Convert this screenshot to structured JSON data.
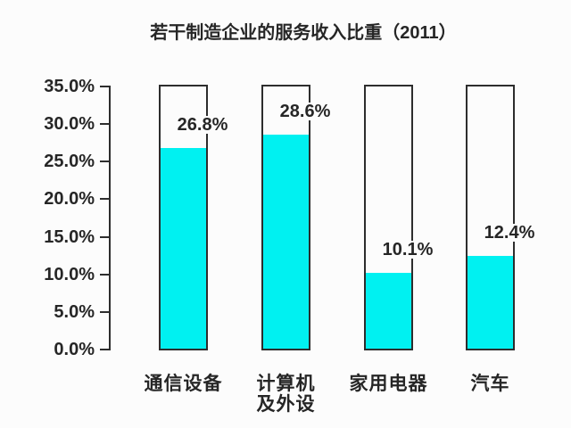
{
  "page": {
    "background_color": "#fcfcfc",
    "text_color": "#262626"
  },
  "chart_data": {
    "type": "bar",
    "title": "若干制造企业的服务收入比重（2011）",
    "categories": [
      "通信设备",
      "计算机及外设",
      "家用电器",
      "汽车"
    ],
    "values": [
      26.8,
      28.6,
      10.1,
      12.4
    ],
    "xlabel": "",
    "ylabel": "",
    "ylim": [
      0,
      35
    ],
    "ytick_labels": [
      "0.0%",
      "5.0%",
      "10.0%",
      "15.0%",
      "20.0%",
      "25.0%",
      "30.0%",
      "35.0%"
    ],
    "grid": false,
    "legend": false,
    "bar_style": {
      "fill_color": "#00f1f1",
      "outline_color": "#2d2d2d",
      "outline_box_top_value": 35,
      "empty_fill_color": "#fcfcfc"
    },
    "axis_color": "#2d2d2d",
    "bars": [
      {
        "category_lines": [
          "通信设备"
        ],
        "value": 26.8,
        "value_label": "26.8%"
      },
      {
        "category_lines": [
          "计算机",
          "及外设"
        ],
        "value": 28.6,
        "value_label": "28.6%"
      },
      {
        "category_lines": [
          "家用电器"
        ],
        "value": 10.1,
        "value_label": "10.1%"
      },
      {
        "category_lines": [
          "汽车"
        ],
        "value": 12.4,
        "value_label": "12.4%"
      }
    ]
  }
}
